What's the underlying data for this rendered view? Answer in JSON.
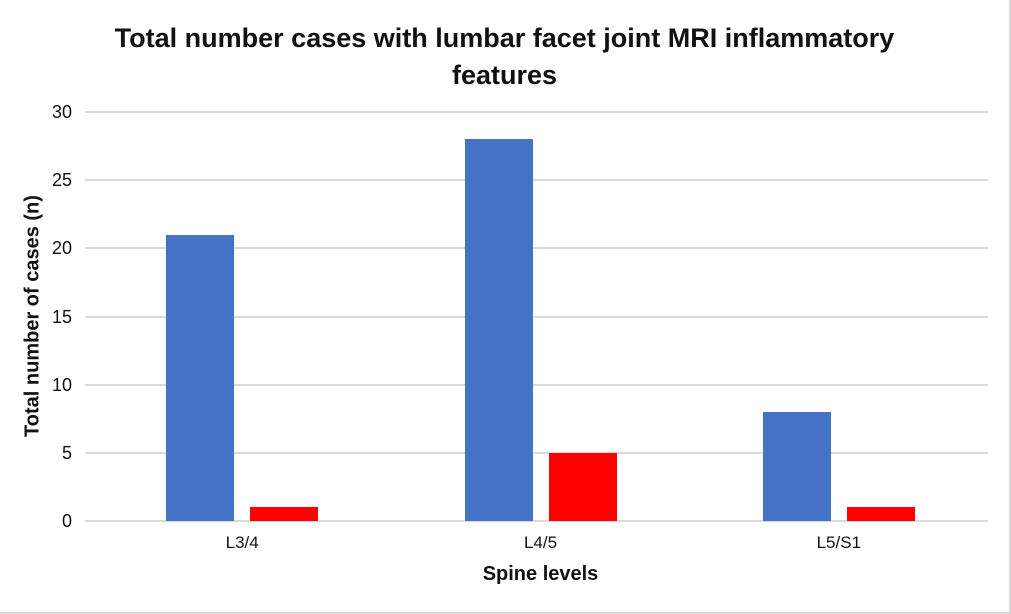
{
  "chart_data": {
    "type": "bar",
    "title": "Total number cases with lumbar facet joint MRI inflammatory features",
    "xlabel": "Spine levels",
    "ylabel": "Total number of cases (n)",
    "categories": [
      "L3/4",
      "L4/5",
      "L5/S1"
    ],
    "series": [
      {
        "name": "blue-series",
        "color": "#4472C4",
        "values": [
          21,
          28,
          8
        ]
      },
      {
        "name": "red-series",
        "color": "#FF0000",
        "values": [
          1,
          5,
          1
        ]
      }
    ],
    "ylim": [
      0,
      30
    ],
    "yticks": [
      0,
      5,
      10,
      15,
      20,
      25,
      30
    ],
    "grid": "horizontal",
    "legend": "none"
  },
  "colors": {
    "gridline": "#D9D9D9",
    "axis_line": "#D9D9D9",
    "frame_border": "#D9D9D9",
    "text": "#111111",
    "background": "#FFFFFF"
  }
}
